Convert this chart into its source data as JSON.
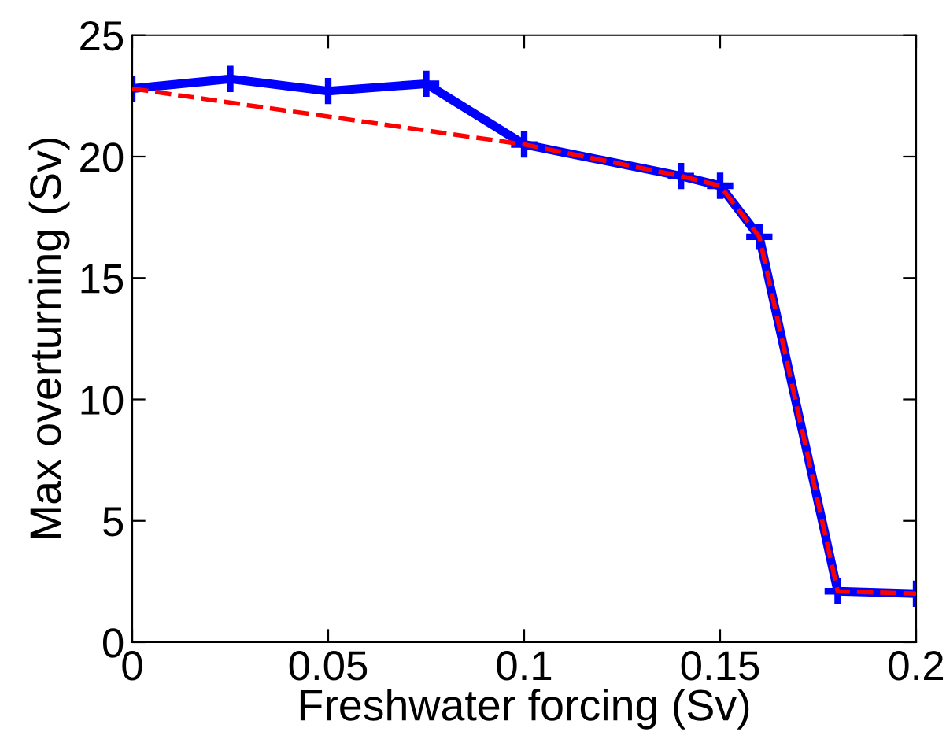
{
  "chart_data": {
    "type": "line",
    "xlabel": "Freshwater forcing (Sv)",
    "ylabel": "Max overturning (Sv)",
    "xlim": [
      0,
      0.2
    ],
    "xticks": [
      0,
      0.05,
      0.1,
      0.15,
      0.2
    ],
    "ylim": [
      0,
      25
    ],
    "yticks": [
      0,
      5,
      10,
      15,
      20,
      25
    ],
    "grid": false,
    "legend": false,
    "series": [
      {
        "color": "#0000ff",
        "marker": "cross",
        "line_style": "solid",
        "x": [
          0,
          0.025,
          0.05,
          0.075,
          0.1,
          0.14,
          0.15,
          0.16,
          0.18,
          0.2
        ],
        "values": [
          22.8,
          23.2,
          22.7,
          23.0,
          20.5,
          19.2,
          18.8,
          16.7,
          2.1,
          2.0
        ]
      },
      {
        "color": "#ff0000",
        "marker": "none",
        "line_style": "dashed",
        "x": [
          0,
          0.1,
          0.14,
          0.15,
          0.16,
          0.18,
          0.2
        ],
        "values": [
          22.8,
          20.5,
          19.2,
          18.8,
          16.7,
          2.1,
          2.0
        ]
      }
    ]
  }
}
